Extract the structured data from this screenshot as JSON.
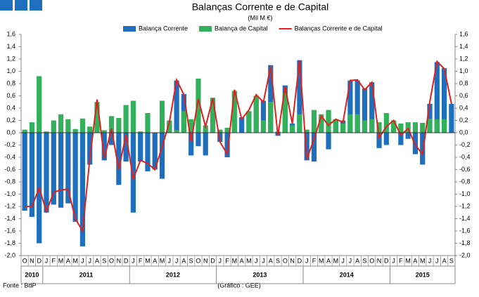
{
  "chart_data": {
    "type": "bar",
    "title": "Balanças Corrente e de Capital",
    "subtitle": "(Mil M €)",
    "source": "Fonte : BdP",
    "credit": "(Gráfico : GEE)",
    "categories": [
      "O",
      "N",
      "D",
      "J",
      "F",
      "M",
      "A",
      "M",
      "J",
      "J",
      "A",
      "S",
      "O",
      "N",
      "D",
      "J",
      "F",
      "M",
      "A",
      "M",
      "J",
      "J",
      "A",
      "S",
      "O",
      "N",
      "D",
      "J",
      "F",
      "M",
      "A",
      "M",
      "J",
      "J",
      "A",
      "S",
      "O",
      "N",
      "D",
      "J",
      "F",
      "M",
      "A",
      "M",
      "J",
      "J",
      "A",
      "S",
      "O",
      "N",
      "D",
      "J",
      "F",
      "M",
      "A",
      "M",
      "J",
      "J",
      "A",
      "S"
    ],
    "years": [
      "2010",
      "2011",
      "2012",
      "2013",
      "2014",
      "2015"
    ],
    "series": [
      {
        "name": "Balança Corrente",
        "type": "bar",
        "color": "#1f6fbf",
        "values": [
          -1.27,
          -1.37,
          -1.8,
          -1.3,
          -1.17,
          -1.22,
          -1.15,
          -1.45,
          -1.85,
          -0.52,
          0.05,
          -0.45,
          -0.2,
          -0.85,
          -0.47,
          -1.3,
          -0.47,
          -0.63,
          -0.6,
          -0.75,
          0.18,
          0.85,
          0.63,
          -0.37,
          -0.22,
          -0.37,
          0.5,
          -0.15,
          -0.4,
          0.2,
          0.25,
          0.35,
          0.6,
          0.52,
          1.1,
          -0.05,
          0.77,
          0.15,
          1.18,
          -0.45,
          -0.47,
          0.25,
          -0.27,
          0.2,
          0.2,
          0.85,
          0.85,
          0.72,
          0.82,
          -0.25,
          -0.2,
          0.2,
          -0.2,
          -0.1,
          -0.35,
          -0.52,
          0.47,
          1.15,
          1.05,
          0.47
        ]
      },
      {
        "name": "Balança de Capital",
        "type": "bar",
        "color": "#33b15a",
        "values": [
          0.05,
          0.17,
          0.92,
          0.02,
          0.2,
          0.3,
          0.22,
          0.06,
          0.23,
          0.1,
          0.5,
          0.04,
          0.27,
          0.24,
          0.45,
          0.52,
          0.02,
          0.32,
          0.0,
          0.52,
          0.2,
          0.04,
          0.35,
          0.22,
          0.88,
          0.12,
          0.57,
          0.05,
          0.08,
          0.68,
          0.0,
          0.35,
          0.6,
          0.2,
          0.5,
          0.02,
          0.65,
          0.12,
          0.3,
          0.05,
          0.37,
          0.3,
          0.37,
          0.22,
          0.15,
          0.3,
          0.3,
          0.2,
          0.22,
          0.17,
          0.32,
          0.2,
          0.15,
          0.17,
          0.17,
          0.16,
          0.23,
          0.22,
          0.22,
          0.0
        ]
      },
      {
        "name": "Balanças Corrente e de Capital",
        "type": "line",
        "color": "#e0201c",
        "values": [
          -1.2,
          -1.2,
          -0.9,
          -1.28,
          -0.97,
          -0.93,
          -0.92,
          -1.4,
          -1.6,
          -0.42,
          0.54,
          -0.42,
          0.07,
          -0.6,
          -0.03,
          -0.75,
          -0.45,
          -0.5,
          -0.6,
          -0.23,
          0.17,
          0.86,
          0.62,
          -0.15,
          0.55,
          0.1,
          0.56,
          -0.15,
          -0.35,
          0.7,
          0.22,
          0.37,
          0.62,
          0.5,
          1.08,
          -0.05,
          0.75,
          0.15,
          1.18,
          -0.43,
          -0.1,
          0.27,
          0.12,
          0.22,
          0.17,
          0.85,
          0.86,
          0.7,
          0.82,
          -0.08,
          0.1,
          0.2,
          -0.04,
          0.07,
          -0.2,
          -0.35,
          0.5,
          1.16,
          1.04,
          0.47
        ]
      }
    ],
    "ylim": [
      -2.0,
      1.6
    ],
    "yticks": [
      {
        "value": -2.0,
        "label": "-2,0"
      },
      {
        "value": -1.8,
        "label": "-1,8"
      },
      {
        "value": -1.6,
        "label": "-1,6"
      },
      {
        "value": -1.4,
        "label": "-1,4"
      },
      {
        "value": -1.2,
        "label": "-1,2"
      },
      {
        "value": -1.0,
        "label": "-1,0"
      },
      {
        "value": -0.8,
        "label": "-0,8"
      },
      {
        "value": -0.6,
        "label": "-0,6"
      },
      {
        "value": -0.4,
        "label": "-0,4"
      },
      {
        "value": -0.2,
        "label": "-0,2"
      },
      {
        "value": 0,
        "label": "0,0"
      },
      {
        "value": 0.2,
        "label": "0,2"
      },
      {
        "value": 0.4,
        "label": "0,4"
      },
      {
        "value": 0.6,
        "label": "0,6"
      },
      {
        "value": 0.8,
        "label": "0,8"
      },
      {
        "value": 1.0,
        "label": "1,0"
      },
      {
        "value": 1.2,
        "label": "1,2"
      },
      {
        "value": 1.4,
        "label": "1,4"
      },
      {
        "value": 1.6,
        "label": "1,6"
      }
    ],
    "grid": false
  }
}
